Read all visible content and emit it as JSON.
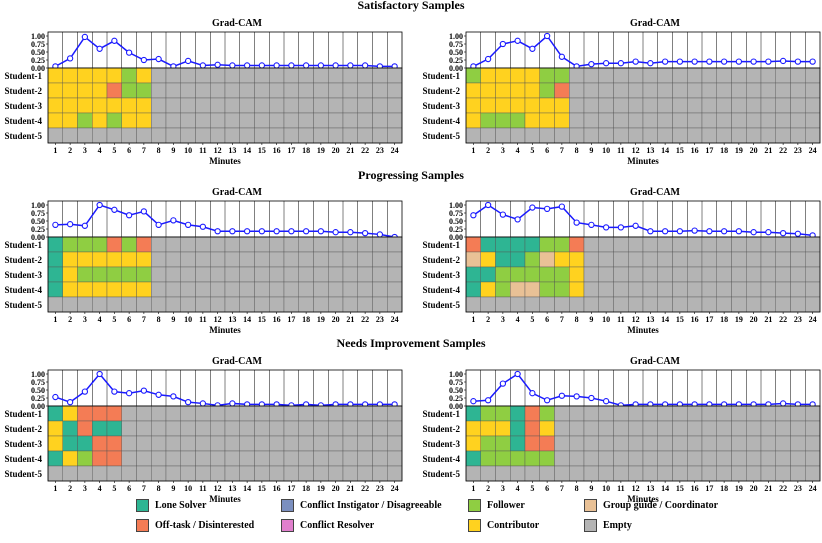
{
  "sections": [
    {
      "title": "Satisfactory Samples"
    },
    {
      "title": "Progressing Samples"
    },
    {
      "title": "Needs Improvement Samples"
    }
  ],
  "panel_common": {
    "subtitle": "Grad-CAM",
    "xlabel": "Minutes",
    "y_ticks": [
      "1.00",
      "0.75",
      "0.50",
      "0.25",
      "0.00"
    ],
    "students": [
      "Student-1",
      "Student-2",
      "Student-3",
      "Student-4",
      "Student-5"
    ]
  },
  "colors": {
    "L": "#2eb593",
    "C": "#7b8fbf",
    "F": "#8fce42",
    "G": "#e9c196",
    "O": "#f47c55",
    "R": "#e07fcd",
    "T": "#ffd21f",
    "E": "#b4b4b4",
    "line": "#1a1aff"
  },
  "chart_data": [
    {
      "type": "line+heatmap",
      "section": 0,
      "x": [
        1,
        2,
        3,
        4,
        5,
        6,
        7,
        8,
        9,
        10,
        11,
        12,
        13,
        14,
        15,
        16,
        17,
        18,
        19,
        20,
        21,
        22,
        23,
        24
      ],
      "ylim": [
        0,
        1
      ],
      "gradcam": [
        0.05,
        0.3,
        0.97,
        0.6,
        0.85,
        0.48,
        0.25,
        0.28,
        0.05,
        0.22,
        0.08,
        0.1,
        0.08,
        0.08,
        0.08,
        0.08,
        0.08,
        0.08,
        0.08,
        0.08,
        0.08,
        0.08,
        0.05,
        0.05
      ],
      "roles": [
        "TTTTTFTEEEEEEEEEEEEEEEEE",
        "TTTTOFFEEEEEEEEEEEEEEEEE",
        "TTTTTTTEEEEEEEEEEEEEEEEE",
        "TTFTFTTEEEEEEEEEEEEEEEEE",
        "EEEEEEEEEEEEEEEEEEEEEEEE"
      ]
    },
    {
      "type": "line+heatmap",
      "section": 0,
      "x": [
        1,
        2,
        3,
        4,
        5,
        6,
        7,
        8,
        9,
        10,
        11,
        12,
        13,
        14,
        15,
        16,
        17,
        18,
        19,
        20,
        21,
        22,
        23,
        24
      ],
      "ylim": [
        0,
        1
      ],
      "gradcam": [
        0.05,
        0.28,
        0.75,
        0.85,
        0.6,
        1.0,
        0.35,
        0.05,
        0.12,
        0.15,
        0.15,
        0.2,
        0.15,
        0.2,
        0.2,
        0.2,
        0.2,
        0.2,
        0.2,
        0.2,
        0.2,
        0.22,
        0.2,
        0.2
      ],
      "roles": [
        "FTTTTFFEEEEEEEEEEEEEEEEE",
        "TTTTTFOEEEEEEEEEEEEEEEEE",
        "TTTTTTTEEEEEEEEEEEEEEEEE",
        "TFFFTTTEEEEEEEEEEEEEEEEE",
        "EEEEEEEEEEEEEEEEEEEEEEEE"
      ]
    },
    {
      "type": "line+heatmap",
      "section": 1,
      "x": [
        1,
        2,
        3,
        4,
        5,
        6,
        7,
        8,
        9,
        10,
        11,
        12,
        13,
        14,
        15,
        16,
        17,
        18,
        19,
        20,
        21,
        22,
        23,
        24
      ],
      "ylim": [
        0,
        1
      ],
      "gradcam": [
        0.38,
        0.4,
        0.35,
        1.0,
        0.85,
        0.68,
        0.8,
        0.38,
        0.52,
        0.38,
        0.32,
        0.18,
        0.18,
        0.18,
        0.18,
        0.18,
        0.18,
        0.18,
        0.18,
        0.15,
        0.15,
        0.12,
        0.08,
        0.0
      ],
      "roles": [
        "LFFFOFOEEEEEEEEEEEEEEEEE",
        "LTTTTTTEEEEEEEEEEEEEEEEE",
        "LTFFFFFEEEEEEEEEEEEEEEEE",
        "LTTTTTTEEEEEEEEEEEEEEEEE",
        "EEEEEEEEEEEEEEEEEEEEEEEE"
      ]
    },
    {
      "type": "line+heatmap",
      "section": 1,
      "x": [
        1,
        2,
        3,
        4,
        5,
        6,
        7,
        8,
        9,
        10,
        11,
        12,
        13,
        14,
        15,
        16,
        17,
        18,
        19,
        20,
        21,
        22,
        23,
        24
      ],
      "ylim": [
        0,
        1
      ],
      "gradcam": [
        0.68,
        1.0,
        0.7,
        0.55,
        0.92,
        0.88,
        0.95,
        0.45,
        0.38,
        0.3,
        0.3,
        0.35,
        0.18,
        0.18,
        0.18,
        0.2,
        0.18,
        0.18,
        0.18,
        0.15,
        0.15,
        0.12,
        0.1,
        0.05
      ],
      "roles": [
        "OLLLLFFOEEEEEEEEEEEEEEEE",
        "GTLLFGTTEEEEEEEEEEEEEEEE",
        "LLFFFFFTEEEEEEEEEEEEEEEE",
        "LTFGGFFTEEEEEEEEEEEEEEEE",
        "EEEEEEEEEEEEEEEEEEEEEEEE"
      ]
    },
    {
      "type": "line+heatmap",
      "section": 2,
      "x": [
        1,
        2,
        3,
        4,
        5,
        6,
        7,
        8,
        9,
        10,
        11,
        12,
        13,
        14,
        15,
        16,
        17,
        18,
        19,
        20,
        21,
        22,
        23,
        24
      ],
      "ylim": [
        0,
        1
      ],
      "gradcam": [
        0.28,
        0.12,
        0.45,
        1.0,
        0.45,
        0.4,
        0.48,
        0.35,
        0.3,
        0.12,
        0.08,
        0.02,
        0.08,
        0.05,
        0.05,
        0.05,
        0.02,
        0.05,
        0.02,
        0.05,
        0.05,
        0.05,
        0.05,
        0.05
      ],
      "roles": [
        "LTOOOEEEEEEEEEEEEEEEEEEE",
        "TLOLLEEEEEEEEEEEEEEEEEEE",
        "TLLOOEEEEEEEEEEEEEEEEEEE",
        "LTFOOEEEEEEEEEEEEEEEEEEE",
        "EEEEEEEEEEEEEEEEEEEEEEEE"
      ]
    },
    {
      "type": "line+heatmap",
      "section": 2,
      "x": [
        1,
        2,
        3,
        4,
        5,
        6,
        7,
        8,
        9,
        10,
        11,
        12,
        13,
        14,
        15,
        16,
        17,
        18,
        19,
        20,
        21,
        22,
        23,
        24
      ],
      "ylim": [
        0,
        1
      ],
      "gradcam": [
        0.15,
        0.18,
        0.7,
        1.0,
        0.4,
        0.18,
        0.32,
        0.3,
        0.25,
        0.15,
        0.02,
        0.05,
        0.05,
        0.05,
        0.05,
        0.05,
        0.05,
        0.05,
        0.05,
        0.05,
        0.05,
        0.08,
        0.05,
        0.05
      ],
      "roles": [
        "LFFLOFEEEEEEEEEEEEEEEEEE",
        "TTTLOTEEEEEEEEEEEEEEEEEE",
        "TFFLOOEEEEEEEEEEEEEEEEEE",
        "LFFFFFEEEEEEEEEEEEEEEEEE",
        "EEEEEEEEEEEEEEEEEEEEEEEE"
      ]
    }
  ],
  "legend": [
    {
      "key": "L",
      "label": "Lone Solver"
    },
    {
      "key": "C",
      "label": "Conflict Instigator / Disagreeable"
    },
    {
      "key": "F",
      "label": "Follower"
    },
    {
      "key": "G",
      "label": "Group guide / Coordinator"
    },
    {
      "key": "O",
      "label": "Off-task / Disinterested"
    },
    {
      "key": "R",
      "label": "Conflict Resolver"
    },
    {
      "key": "T",
      "label": "Contributor"
    },
    {
      "key": "E",
      "label": "Empty"
    }
  ]
}
